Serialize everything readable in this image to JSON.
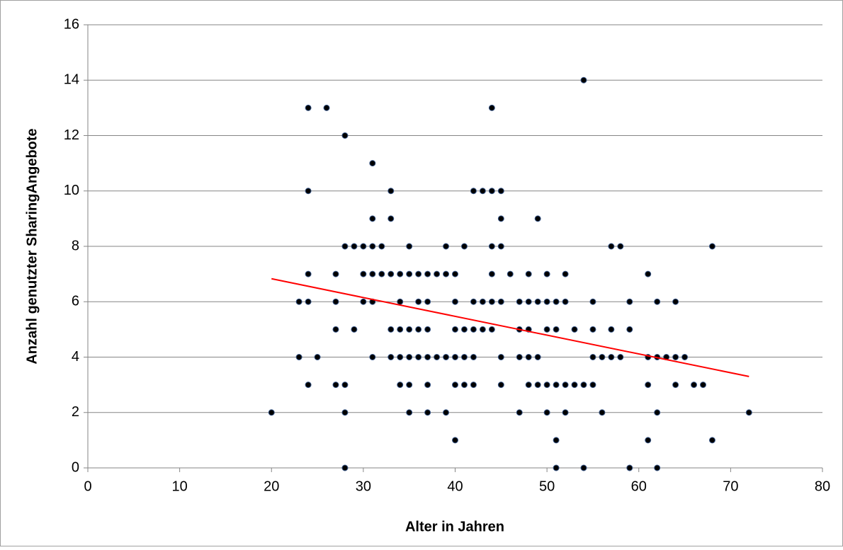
{
  "chart_data": {
    "type": "scatter",
    "x_label": "Alter in Jahren",
    "y_label": "Anzahl genutzter SharingAngebote",
    "xlim": [
      0,
      80
    ],
    "xticks": [
      0,
      10,
      20,
      30,
      40,
      50,
      60,
      70,
      80
    ],
    "ylim": [
      0,
      16
    ],
    "yticks": [
      0,
      2,
      4,
      6,
      8,
      10,
      12,
      14,
      16
    ],
    "grid": true,
    "series": [
      {
        "color": "#000000",
        "x": [
          20,
          23,
          23,
          24,
          24,
          24,
          24,
          24,
          25,
          26,
          27,
          27,
          27,
          27,
          28,
          28,
          28,
          28,
          28,
          29,
          29,
          30,
          30,
          30,
          31,
          31,
          31,
          31,
          31,
          31,
          32,
          32,
          33,
          33,
          33,
          33,
          33,
          34,
          34,
          34,
          34,
          34,
          35,
          35,
          35,
          35,
          35,
          35,
          36,
          36,
          36,
          36,
          37,
          37,
          37,
          37,
          37,
          37,
          38,
          38,
          39,
          39,
          39,
          39,
          40,
          40,
          40,
          40,
          40,
          40,
          41,
          41,
          41,
          41,
          42,
          42,
          42,
          42,
          42,
          43,
          43,
          43,
          44,
          44,
          44,
          44,
          44,
          44,
          45,
          45,
          45,
          45,
          45,
          45,
          46,
          47,
          47,
          47,
          47,
          48,
          48,
          48,
          48,
          48,
          49,
          49,
          49,
          49,
          50,
          50,
          50,
          50,
          50,
          51,
          51,
          51,
          51,
          51,
          52,
          52,
          52,
          52,
          53,
          53,
          54,
          54,
          54,
          55,
          55,
          55,
          55,
          56,
          56,
          57,
          57,
          57,
          58,
          58,
          59,
          59,
          59,
          61,
          61,
          61,
          61,
          62,
          62,
          62,
          62,
          63,
          64,
          64,
          64,
          65,
          66,
          67,
          68,
          68,
          72
        ],
        "values": [
          2,
          4,
          6,
          13,
          10,
          7,
          6,
          3,
          4,
          13,
          7,
          6,
          5,
          3,
          12,
          8,
          3,
          2,
          0,
          8,
          5,
          8,
          7,
          6,
          11,
          9,
          8,
          7,
          6,
          4,
          8,
          7,
          10,
          9,
          7,
          5,
          4,
          7,
          6,
          5,
          4,
          3,
          8,
          7,
          5,
          4,
          3,
          2,
          7,
          6,
          5,
          4,
          7,
          6,
          5,
          4,
          3,
          2,
          7,
          4,
          8,
          7,
          4,
          2,
          7,
          6,
          5,
          4,
          3,
          1,
          8,
          5,
          4,
          3,
          10,
          6,
          5,
          4,
          3,
          10,
          6,
          5,
          13,
          10,
          8,
          7,
          6,
          5,
          10,
          9,
          8,
          6,
          4,
          3,
          7,
          6,
          5,
          4,
          2,
          7,
          6,
          5,
          4,
          3,
          9,
          6,
          4,
          3,
          7,
          6,
          5,
          3,
          2,
          6,
          5,
          3,
          1,
          0,
          7,
          6,
          3,
          2,
          5,
          3,
          14,
          3,
          0,
          6,
          5,
          4,
          3,
          4,
          2,
          8,
          5,
          4,
          8,
          4,
          6,
          5,
          0,
          7,
          4,
          3,
          1,
          6,
          4,
          2,
          0,
          4,
          6,
          4,
          3,
          4,
          3,
          3,
          8,
          1,
          2
        ]
      }
    ],
    "trendline": {
      "color": "#ff0000",
      "x": [
        20,
        72
      ],
      "values": [
        6.83,
        3.3
      ]
    }
  }
}
